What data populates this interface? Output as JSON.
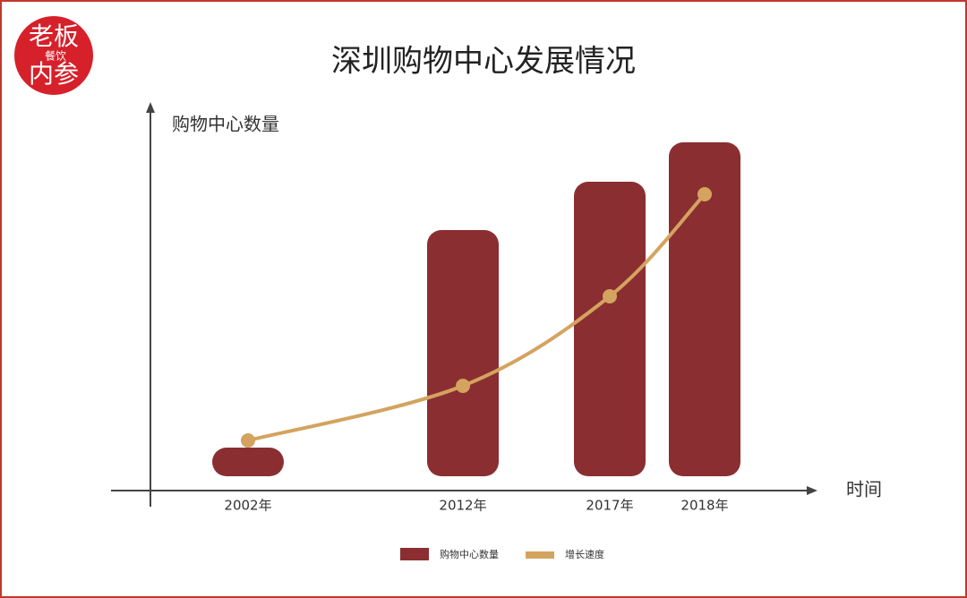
{
  "logo": {
    "line1": "老板",
    "line2": "内参",
    "badge": "餐饮"
  },
  "chart_data": {
    "type": "bar",
    "title": "深圳购物中心发展情况",
    "y_label": "购物中心数量",
    "x_label": "时间",
    "categories": [
      "2002年",
      "2012年",
      "2017年",
      "2018年"
    ],
    "series": [
      {
        "name": "购物中心数量",
        "type": "bar",
        "color": "#8b2e32",
        "values": [
          32,
          275,
          329,
          373
        ]
      },
      {
        "name": "增长速度",
        "type": "line",
        "color": "#d4a35f",
        "values": [
          40,
          101,
          201,
          315
        ]
      }
    ],
    "ylim": [
      0,
      400
    ],
    "legend": "bottom"
  }
}
